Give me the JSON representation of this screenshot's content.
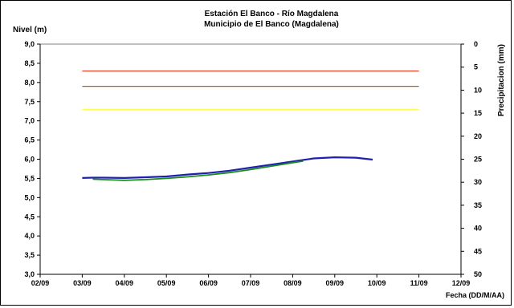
{
  "chart_data": {
    "type": "line",
    "title": "Estación El Banco - Río Magdalena",
    "subtitle": "Municipio de El Banco (Magdalena)",
    "ylabel": "Nivel (m)",
    "y2label": "Precipitacion (mm)",
    "xlabel": "Fecha (DD/M/AA)",
    "x_ticks": [
      "02/09",
      "03/09",
      "04/09",
      "05/09",
      "06/09",
      "07/09",
      "08/09",
      "09/09",
      "10/09",
      "11/09",
      "12/09"
    ],
    "y_ticks": [
      "3,0",
      "3,5",
      "4,0",
      "4,5",
      "5,0",
      "5,5",
      "6,0",
      "6,5",
      "7,0",
      "7,5",
      "8,0",
      "8,5",
      "9,0"
    ],
    "y2_ticks": [
      "0",
      "5",
      "10",
      "15",
      "20",
      "25",
      "30",
      "35",
      "40",
      "45",
      "50"
    ],
    "ylim": [
      3.0,
      9.0
    ],
    "y2lim": [
      0,
      50
    ],
    "y2_inverted": true,
    "grid": false,
    "reference_lines": [
      {
        "value": 8.3,
        "color": "#e8402a"
      },
      {
        "value": 7.9,
        "color": "#b35a2a"
      },
      {
        "value": 7.3,
        "color": "#ffff33"
      }
    ],
    "series": [
      {
        "color": "#2020b0",
        "x": [
          1.0,
          1.25,
          1.5,
          2.0,
          2.5,
          3.0,
          3.5,
          4.0,
          4.5,
          5.0,
          5.5,
          6.0,
          6.5,
          7.0,
          7.5,
          7.9
        ],
        "y": [
          5.51,
          5.52,
          5.52,
          5.51,
          5.53,
          5.55,
          5.6,
          5.64,
          5.7,
          5.78,
          5.86,
          5.94,
          6.02,
          6.05,
          6.04,
          5.99
        ]
      },
      {
        "color": "#1a8a1a",
        "x": [
          1.25,
          1.5,
          2.0,
          2.5,
          3.0,
          3.5,
          4.0,
          4.5,
          5.0,
          5.5,
          6.0,
          6.25
        ],
        "y": [
          5.48,
          5.47,
          5.45,
          5.47,
          5.5,
          5.54,
          5.59,
          5.65,
          5.73,
          5.82,
          5.91,
          5.95
        ]
      }
    ]
  }
}
